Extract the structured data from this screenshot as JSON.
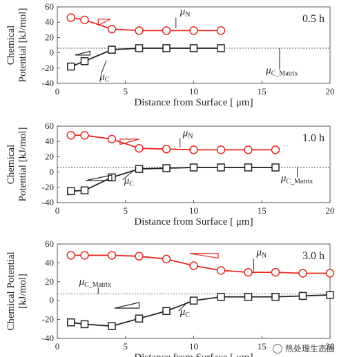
{
  "chart_data": [
    {
      "type": "line",
      "title": "",
      "time_label": "0.5 h",
      "xlabel": "Distance from Surface [ μm]",
      "ylabel_lines": [
        "Chemical",
        "Potential [kJ/mol]"
      ],
      "xlim": [
        0,
        20
      ],
      "ylim": [
        -40,
        60
      ],
      "xticks": [
        0,
        5,
        10,
        15,
        20
      ],
      "yticks": [
        -40,
        -20,
        0,
        20,
        40,
        60
      ],
      "matrix_line": 6,
      "series": [
        {
          "name": "μN",
          "color": "#e8281e",
          "marker": "circle",
          "x": [
            1,
            2,
            4,
            6,
            8,
            10,
            12
          ],
          "y": [
            46,
            43,
            31,
            29,
            29,
            29,
            29
          ]
        },
        {
          "name": "μC",
          "color": "#222222",
          "marker": "square",
          "x": [
            1,
            2,
            4,
            6,
            8,
            10,
            12
          ],
          "y": [
            -18,
            -11,
            4,
            6,
            6,
            6,
            6
          ]
        }
      ],
      "annotations": [
        "μN",
        "μC",
        "μC_Matrix"
      ]
    },
    {
      "type": "line",
      "title": "",
      "time_label": "1.0 h",
      "xlabel": "Distance from Surface [ μm]",
      "ylabel_lines": [
        "Chemical",
        "Potential [kJ/mol]"
      ],
      "xlim": [
        0,
        20
      ],
      "ylim": [
        -40,
        60
      ],
      "xticks": [
        0,
        5,
        10,
        15,
        20
      ],
      "yticks": [
        -40,
        -20,
        0,
        20,
        40,
        60
      ],
      "matrix_line": 6,
      "series": [
        {
          "name": "μN",
          "color": "#e8281e",
          "marker": "circle",
          "x": [
            1,
            2,
            4,
            6,
            8,
            10,
            12,
            14,
            16
          ],
          "y": [
            48,
            48,
            43,
            31,
            30,
            29,
            29,
            29,
            29
          ]
        },
        {
          "name": "μC",
          "color": "#222222",
          "marker": "square",
          "x": [
            1,
            2,
            4,
            6,
            8,
            10,
            12,
            14,
            16
          ],
          "y": [
            -25,
            -24,
            -7,
            4,
            5,
            6,
            6,
            6,
            6
          ]
        }
      ],
      "annotations": [
        "μN",
        "μC",
        "μC_Matrix"
      ]
    },
    {
      "type": "line",
      "title": "",
      "time_label": "3.0 h",
      "xlabel": "Distance from Surface [ μm]",
      "ylabel_lines": [
        "Chemical Potential",
        "[kJ/mol]"
      ],
      "xlim": [
        0,
        20
      ],
      "ylim": [
        -40,
        60
      ],
      "xticks": [
        0,
        5,
        10,
        15,
        20
      ],
      "yticks": [
        -40,
        -20,
        0,
        20,
        40,
        60
      ],
      "matrix_line": 7,
      "series": [
        {
          "name": "μN",
          "color": "#e8281e",
          "marker": "circle",
          "x": [
            1,
            2,
            4,
            6,
            8,
            10,
            12,
            14,
            16,
            18,
            20
          ],
          "y": [
            48,
            48,
            48,
            47,
            44,
            37,
            32,
            30,
            30,
            29,
            29
          ]
        },
        {
          "name": "μC",
          "color": "#222222",
          "marker": "square",
          "x": [
            1,
            2,
            4,
            6,
            8,
            10,
            12,
            14,
            16,
            18,
            20
          ],
          "y": [
            -23,
            -25,
            -27,
            -19,
            -11,
            0,
            4,
            4,
            4,
            5,
            6
          ]
        }
      ],
      "annotations": [
        "μN",
        "μC",
        "μC_Matrix"
      ]
    }
  ],
  "watermark": "热处理生态圈"
}
